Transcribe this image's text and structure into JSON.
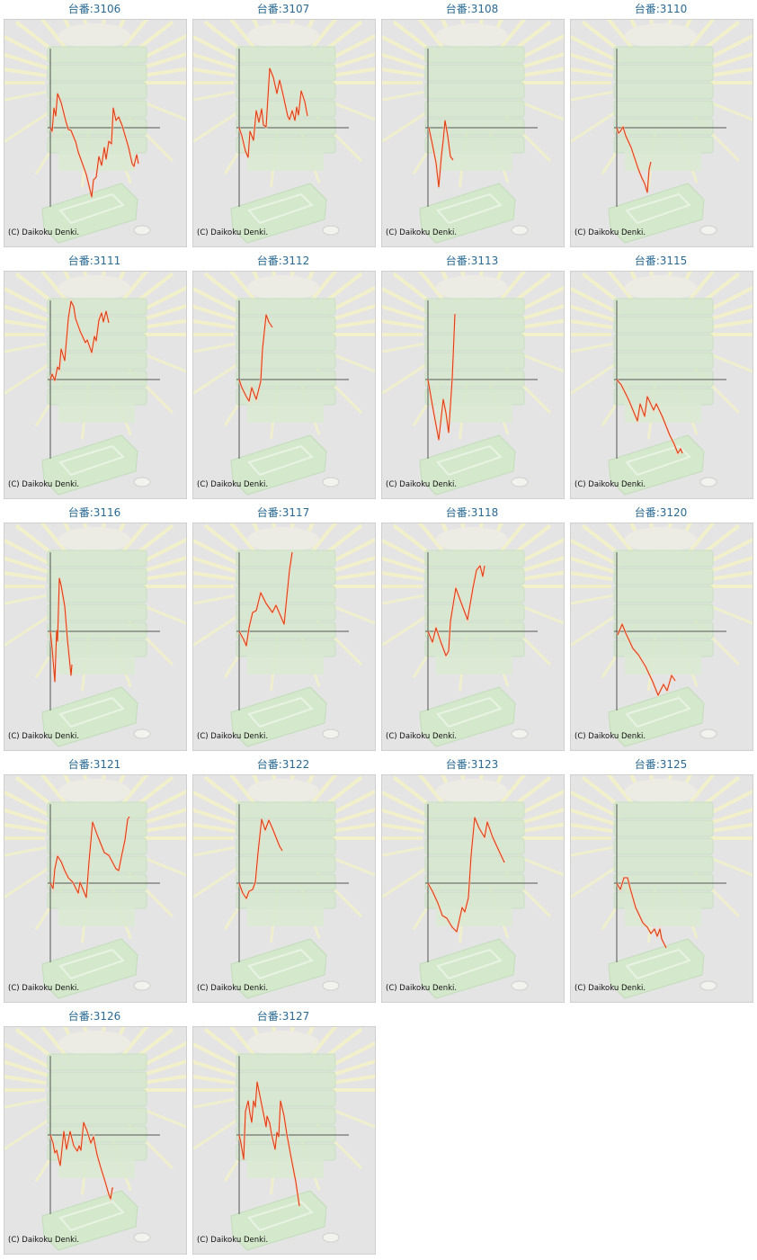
{
  "copyright": "(C) Daikoku Denki.",
  "colors": {
    "line": "#e03c10",
    "axis": "#555555",
    "title": "#2a6a94",
    "panel": "#e4e4e4"
  },
  "chart_data": {
    "type": "line",
    "xlabel": "",
    "ylabel": "",
    "charts": [
      {
        "label": "台番:3106",
        "points": [
          [
            0,
            0
          ],
          [
            2,
            -4
          ],
          [
            4,
            22
          ],
          [
            6,
            13
          ],
          [
            8,
            38
          ],
          [
            12,
            28
          ],
          [
            17,
            8
          ],
          [
            20,
            -2
          ],
          [
            23,
            -3
          ],
          [
            27,
            -13
          ],
          [
            28,
            -15
          ],
          [
            31,
            -27
          ],
          [
            35,
            -38
          ],
          [
            40,
            -52
          ],
          [
            46,
            -77
          ],
          [
            48,
            -58
          ],
          [
            51,
            -55
          ],
          [
            54,
            -32
          ],
          [
            57,
            -42
          ],
          [
            60,
            -22
          ],
          [
            62,
            -35
          ],
          [
            65,
            -15
          ],
          [
            68,
            -18
          ],
          [
            70,
            22
          ],
          [
            73,
            8
          ],
          [
            76,
            12
          ],
          [
            80,
            2
          ],
          [
            87,
            -22
          ],
          [
            91,
            -40
          ],
          [
            93,
            -43
          ],
          [
            96,
            -30
          ],
          [
            98,
            -40
          ]
        ]
      },
      {
        "label": "台番:3107",
        "points": [
          [
            0,
            0
          ],
          [
            3,
            -9
          ],
          [
            7,
            -26
          ],
          [
            10,
            -33
          ],
          [
            12,
            -4
          ],
          [
            16,
            -14
          ],
          [
            19,
            19
          ],
          [
            22,
            6
          ],
          [
            25,
            21
          ],
          [
            27,
            3
          ],
          [
            30,
            1
          ],
          [
            34,
            66
          ],
          [
            38,
            56
          ],
          [
            42,
            38
          ],
          [
            45,
            53
          ],
          [
            49,
            36
          ],
          [
            54,
            13
          ],
          [
            56,
            9
          ],
          [
            59,
            19
          ],
          [
            62,
            8
          ],
          [
            64,
            23
          ],
          [
            66,
            14
          ],
          [
            69,
            41
          ],
          [
            73,
            29
          ],
          [
            76,
            13
          ]
        ]
      },
      {
        "label": "台番:3108",
        "points": [
          [
            1,
            0
          ],
          [
            5,
            -19
          ],
          [
            9,
            -39
          ],
          [
            12,
            -66
          ],
          [
            15,
            -31
          ],
          [
            17,
            -14
          ],
          [
            19,
            8
          ],
          [
            22,
            -9
          ],
          [
            25,
            -32
          ],
          [
            28,
            -36
          ]
        ]
      },
      {
        "label": "台番:3110",
        "points": [
          [
            0,
            0
          ],
          [
            2,
            -6
          ],
          [
            4,
            -4
          ],
          [
            7,
            1
          ],
          [
            10,
            -9
          ],
          [
            16,
            -22
          ],
          [
            24,
            -46
          ],
          [
            28,
            -56
          ],
          [
            31,
            -62
          ],
          [
            34,
            -72
          ],
          [
            36,
            -46
          ],
          [
            38,
            -38
          ]
        ]
      },
      {
        "label": "台番:3111",
        "points": [
          [
            0,
            0
          ],
          [
            2,
            6
          ],
          [
            5,
            -1
          ],
          [
            8,
            14
          ],
          [
            10,
            11
          ],
          [
            12,
            34
          ],
          [
            16,
            21
          ],
          [
            20,
            68
          ],
          [
            23,
            87
          ],
          [
            26,
            81
          ],
          [
            28,
            68
          ],
          [
            33,
            54
          ],
          [
            39,
            41
          ],
          [
            41,
            44
          ],
          [
            46,
            30
          ],
          [
            49,
            48
          ],
          [
            51,
            43
          ],
          [
            54,
            66
          ],
          [
            57,
            74
          ],
          [
            59,
            64
          ],
          [
            62,
            76
          ],
          [
            65,
            63
          ]
        ]
      },
      {
        "label": "台番:3112",
        "points": [
          [
            0,
            0
          ],
          [
            3,
            -9
          ],
          [
            8,
            -19
          ],
          [
            11,
            -24
          ],
          [
            14,
            -9
          ],
          [
            19,
            -22
          ],
          [
            24,
            -2
          ],
          [
            26,
            34
          ],
          [
            30,
            72
          ],
          [
            33,
            64
          ],
          [
            37,
            58
          ]
        ]
      },
      {
        "label": "台番:3113",
        "points": [
          [
            0,
            0
          ],
          [
            5,
            -29
          ],
          [
            12,
            -67
          ],
          [
            14,
            -49
          ],
          [
            17,
            -22
          ],
          [
            20,
            -37
          ],
          [
            23,
            -59
          ],
          [
            27,
            1
          ],
          [
            30,
            73
          ]
        ]
      },
      {
        "label": "台番:3115",
        "points": [
          [
            0,
            0
          ],
          [
            5,
            -6
          ],
          [
            13,
            -22
          ],
          [
            23,
            -46
          ],
          [
            26,
            -27
          ],
          [
            31,
            -41
          ],
          [
            34,
            -19
          ],
          [
            41,
            -34
          ],
          [
            44,
            -27
          ],
          [
            51,
            -42
          ],
          [
            59,
            -62
          ],
          [
            64,
            -72
          ],
          [
            68,
            -82
          ],
          [
            71,
            -77
          ],
          [
            73,
            -82
          ]
        ]
      },
      {
        "label": "台番:3116",
        "points": [
          [
            0,
            0
          ],
          [
            2,
            -19
          ],
          [
            5,
            -56
          ],
          [
            7,
            1
          ],
          [
            8,
            -11
          ],
          [
            10,
            59
          ],
          [
            12,
            51
          ],
          [
            16,
            28
          ],
          [
            19,
            -9
          ],
          [
            22,
            -39
          ],
          [
            23,
            -49
          ],
          [
            24,
            -37
          ]
        ]
      },
      {
        "label": "台番:3117",
        "points": [
          [
            0,
            0
          ],
          [
            5,
            -9
          ],
          [
            8,
            -16
          ],
          [
            11,
            4
          ],
          [
            15,
            21
          ],
          [
            19,
            23
          ],
          [
            24,
            43
          ],
          [
            30,
            31
          ],
          [
            37,
            21
          ],
          [
            41,
            29
          ],
          [
            50,
            8
          ],
          [
            53,
            38
          ],
          [
            56,
            68
          ],
          [
            59,
            88
          ]
        ]
      },
      {
        "label": "台番:3118",
        "points": [
          [
            0,
            0
          ],
          [
            5,
            -12
          ],
          [
            9,
            4
          ],
          [
            14,
            -11
          ],
          [
            20,
            -27
          ],
          [
            23,
            -22
          ],
          [
            25,
            11
          ],
          [
            31,
            48
          ],
          [
            38,
            29
          ],
          [
            44,
            13
          ],
          [
            50,
            48
          ],
          [
            54,
            68
          ],
          [
            58,
            73
          ],
          [
            61,
            61
          ],
          [
            63,
            73
          ]
        ]
      },
      {
        "label": "台番:3120",
        "points": [
          [
            1,
            -4
          ],
          [
            6,
            8
          ],
          [
            10,
            -2
          ],
          [
            18,
            -19
          ],
          [
            24,
            -26
          ],
          [
            32,
            -39
          ],
          [
            40,
            -56
          ],
          [
            46,
            -71
          ],
          [
            52,
            -59
          ],
          [
            56,
            -66
          ],
          [
            61,
            -49
          ],
          [
            65,
            -55
          ]
        ]
      },
      {
        "label": "台番:3121",
        "points": [
          [
            0,
            0
          ],
          [
            3,
            -6
          ],
          [
            5,
            16
          ],
          [
            8,
            30
          ],
          [
            12,
            24
          ],
          [
            16,
            14
          ],
          [
            20,
            6
          ],
          [
            25,
            1
          ],
          [
            31,
            -11
          ],
          [
            33,
            1
          ],
          [
            40,
            -16
          ],
          [
            43,
            24
          ],
          [
            47,
            68
          ],
          [
            52,
            54
          ],
          [
            60,
            34
          ],
          [
            65,
            31
          ],
          [
            73,
            16
          ],
          [
            76,
            14
          ],
          [
            79,
            29
          ],
          [
            83,
            48
          ],
          [
            86,
            71
          ],
          [
            88,
            74
          ]
        ]
      },
      {
        "label": "台番:3122",
        "points": [
          [
            0,
            0
          ],
          [
            4,
            -11
          ],
          [
            8,
            -17
          ],
          [
            11,
            -9
          ],
          [
            15,
            -7
          ],
          [
            18,
            1
          ],
          [
            21,
            34
          ],
          [
            25,
            71
          ],
          [
            29,
            59
          ],
          [
            33,
            70
          ],
          [
            37,
            61
          ],
          [
            41,
            51
          ],
          [
            45,
            41
          ],
          [
            48,
            36
          ]
        ]
      },
      {
        "label": "台番:3123",
        "points": [
          [
            0,
            0
          ],
          [
            5,
            -9
          ],
          [
            11,
            -22
          ],
          [
            16,
            -36
          ],
          [
            21,
            -39
          ],
          [
            27,
            -49
          ],
          [
            32,
            -54
          ],
          [
            38,
            -27
          ],
          [
            41,
            -32
          ],
          [
            45,
            -16
          ],
          [
            48,
            31
          ],
          [
            52,
            73
          ],
          [
            57,
            61
          ],
          [
            63,
            51
          ],
          [
            66,
            68
          ],
          [
            72,
            51
          ],
          [
            78,
            38
          ],
          [
            85,
            23
          ]
        ]
      },
      {
        "label": "台番:3125",
        "points": [
          [
            0,
            0
          ],
          [
            4,
            -7
          ],
          [
            8,
            6
          ],
          [
            12,
            6
          ],
          [
            15,
            -6
          ],
          [
            21,
            -27
          ],
          [
            29,
            -44
          ],
          [
            34,
            -49
          ],
          [
            38,
            -56
          ],
          [
            42,
            -51
          ],
          [
            45,
            -59
          ],
          [
            48,
            -51
          ],
          [
            50,
            -62
          ],
          [
            55,
            -72
          ]
        ]
      },
      {
        "label": "台番:3126",
        "points": [
          [
            0,
            0
          ],
          [
            3,
            -9
          ],
          [
            5,
            -20
          ],
          [
            7,
            -17
          ],
          [
            9,
            -26
          ],
          [
            11,
            -34
          ],
          [
            15,
            4
          ],
          [
            18,
            -16
          ],
          [
            22,
            4
          ],
          [
            26,
            -12
          ],
          [
            30,
            -18
          ],
          [
            32,
            -12
          ],
          [
            34,
            -17
          ],
          [
            37,
            14
          ],
          [
            41,
            4
          ],
          [
            45,
            -9
          ],
          [
            48,
            -2
          ],
          [
            52,
            -22
          ],
          [
            56,
            -36
          ],
          [
            61,
            -52
          ],
          [
            65,
            -66
          ],
          [
            67,
            -71
          ],
          [
            69,
            -59
          ],
          [
            70,
            -59
          ]
        ]
      },
      {
        "label": "台番:3127",
        "points": [
          [
            0,
            0
          ],
          [
            2,
            -9
          ],
          [
            5,
            -27
          ],
          [
            7,
            26
          ],
          [
            10,
            38
          ],
          [
            12,
            24
          ],
          [
            14,
            14
          ],
          [
            16,
            38
          ],
          [
            18,
            31
          ],
          [
            20,
            59
          ],
          [
            24,
            39
          ],
          [
            27,
            24
          ],
          [
            30,
            9
          ],
          [
            31,
            21
          ],
          [
            34,
            13
          ],
          [
            36,
            1
          ],
          [
            40,
            -16
          ],
          [
            42,
            3
          ],
          [
            44,
            -2
          ],
          [
            46,
            38
          ],
          [
            50,
            21
          ],
          [
            53,
            1
          ],
          [
            58,
            -26
          ],
          [
            63,
            -52
          ],
          [
            67,
            -79
          ]
        ]
      }
    ]
  }
}
